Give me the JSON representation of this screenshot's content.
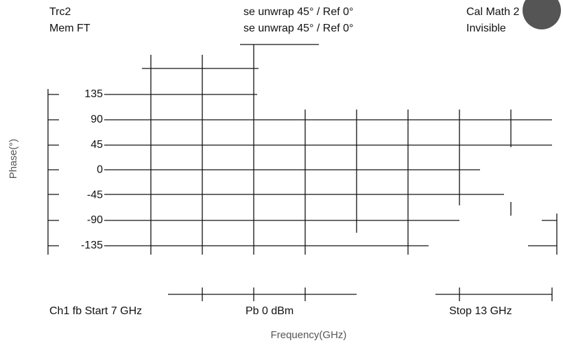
{
  "header": {
    "row1": [
      "Trc2",
      "se unwrap  45° /  Ref 0°",
      "Cal Math  2"
    ],
    "row2": [
      "Mem  FT",
      "se unwrap  45° /  Ref 0°",
      "Invisible"
    ]
  },
  "y_labels": [
    "135",
    "90",
    "45",
    "0",
    "-45",
    "-90",
    "-135"
  ],
  "footer": [
    "Ch1  fb  Start  7 GHz",
    "Pb    0 dBm",
    "Stop  13 GHz"
  ],
  "x_axis_label": "Frequency(GHz)",
  "y_axis_label": "Phase(°)"
}
